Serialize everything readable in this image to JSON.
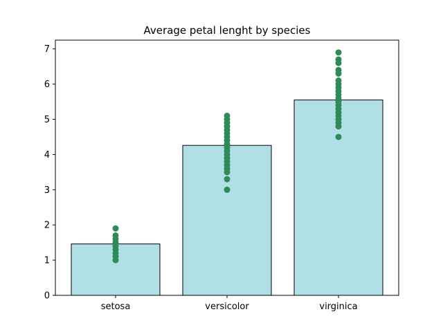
{
  "chart_data": {
    "type": "bar",
    "title": "Average petal lenght by species",
    "xlabel": "",
    "ylabel": "",
    "categories": [
      "setosa",
      "versicolor",
      "virginica"
    ],
    "values": [
      1.46,
      4.26,
      5.55
    ],
    "ylim": [
      0,
      7.25
    ],
    "yticks": [
      0,
      1,
      2,
      3,
      4,
      5,
      6,
      7
    ],
    "bar_color": "#b0e0e6",
    "bar_edge_color": "#000000",
    "point_color": "#2e8b57",
    "points": [
      [
        1.0,
        1.1,
        1.2,
        1.3,
        1.4,
        1.5,
        1.6,
        1.7,
        1.9
      ],
      [
        3.0,
        3.3,
        3.5,
        3.6,
        3.7,
        3.8,
        3.9,
        4.0,
        4.1,
        4.2,
        4.3,
        4.4,
        4.5,
        4.6,
        4.7,
        4.8,
        4.9,
        5.0,
        5.1
      ],
      [
        4.5,
        4.8,
        4.9,
        5.0,
        5.1,
        5.2,
        5.3,
        5.4,
        5.5,
        5.6,
        5.7,
        5.8,
        5.9,
        6.0,
        6.1,
        6.3,
        6.4,
        6.6,
        6.7,
        6.9
      ]
    ]
  }
}
